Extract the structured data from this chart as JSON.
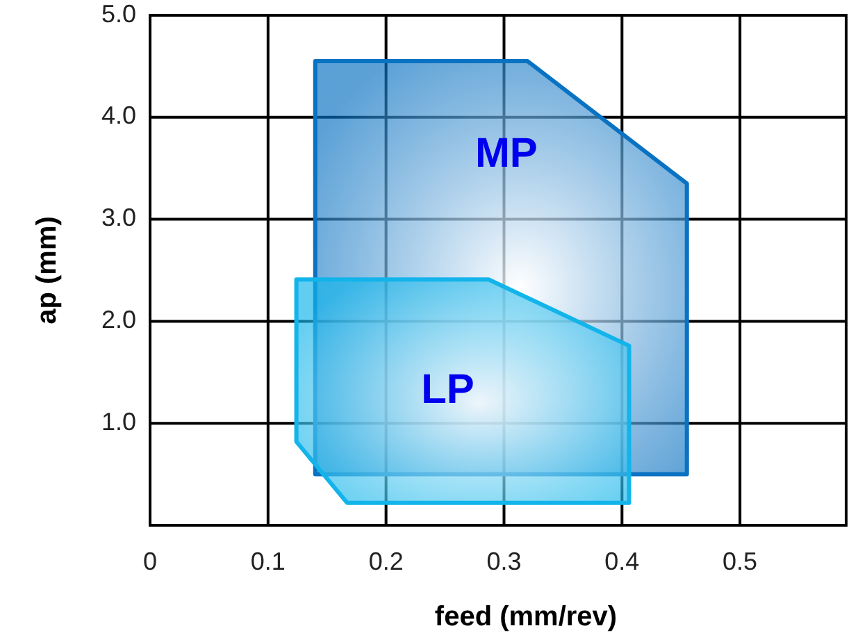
{
  "chart_data": {
    "type": "area",
    "xlabel": "feed (mm/rev)",
    "ylabel": "ap (mm)",
    "xlim": [
      0,
      0.59
    ],
    "ylim": [
      0,
      5
    ],
    "xticks": [
      0,
      0.1,
      0.2,
      0.3,
      0.4,
      0.5
    ],
    "yticks": [
      {
        "value": 0,
        "label": null
      },
      {
        "value": 1,
        "label": "1.0"
      },
      {
        "value": 2,
        "label": "2.0"
      },
      {
        "value": 3,
        "label": "3.0"
      },
      {
        "value": 4,
        "label": "4.0"
      },
      {
        "value": 5,
        "label": "5.0"
      }
    ],
    "grid": true,
    "series": [
      {
        "name": "MP",
        "color": "#0a72c2",
        "x": [
          0.14,
          0.32,
          0.455,
          0.455,
          0.14
        ],
        "values": [
          4.55,
          4.55,
          3.35,
          0.5,
          0.5
        ]
      },
      {
        "name": "LP",
        "color": "#12b4ea",
        "x": [
          0.124,
          0.287,
          0.406,
          0.406,
          0.167,
          0.124
        ],
        "values": [
          2.41,
          2.41,
          1.76,
          0.22,
          0.22,
          0.82
        ]
      }
    ]
  }
}
